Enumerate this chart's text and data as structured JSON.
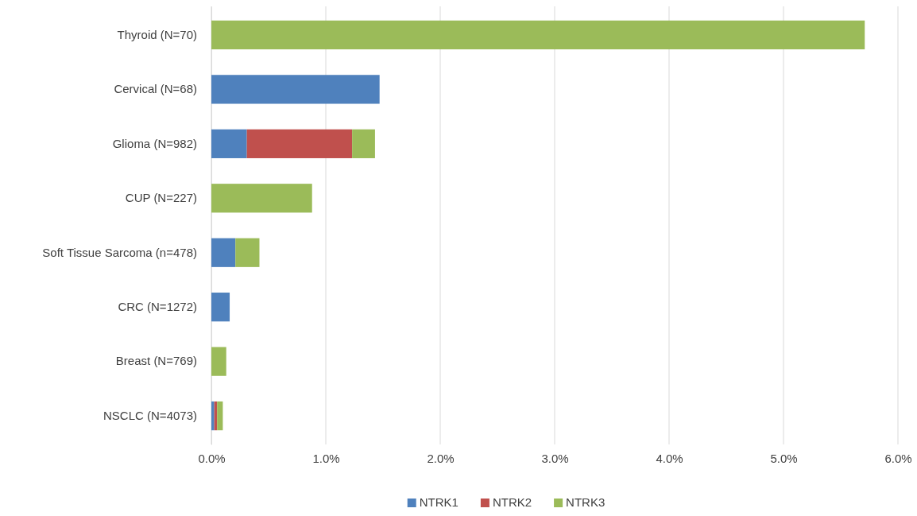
{
  "chart_data": {
    "type": "bar",
    "orientation": "horizontal",
    "stacked": true,
    "categories": [
      "Thyroid (N=70)",
      "Cervical (N=68)",
      "Glioma (N=982)",
      "CUP (N=227)",
      "Soft Tissue Sarcoma (n=478)",
      "CRC (N=1272)",
      "Breast (N=769)",
      "NSCLC (N=4073)"
    ],
    "series": [
      {
        "name": "NTRK1",
        "color": "#4f81bd",
        "values": [
          0,
          1.47,
          0.31,
          0,
          0.21,
          0.16,
          0,
          0.025
        ]
      },
      {
        "name": "NTRK2",
        "color": "#c0504d",
        "values": [
          0,
          0,
          0.92,
          0,
          0,
          0,
          0,
          0.025
        ]
      },
      {
        "name": "NTRK3",
        "color": "#9bbb59",
        "values": [
          5.71,
          0,
          0.2,
          0.88,
          0.21,
          0,
          0.13,
          0.05
        ]
      }
    ],
    "xlim": [
      0,
      6
    ],
    "xticks": [
      {
        "value": 0,
        "label": "0.0%"
      },
      {
        "value": 1,
        "label": "1.0%"
      },
      {
        "value": 2,
        "label": "2.0%"
      },
      {
        "value": 3,
        "label": "3.0%"
      },
      {
        "value": 4,
        "label": "4.0%"
      },
      {
        "value": 5,
        "label": "5.0%"
      },
      {
        "value": 6,
        "label": "6.0%"
      }
    ],
    "grid": "x",
    "legend": "bottom"
  }
}
